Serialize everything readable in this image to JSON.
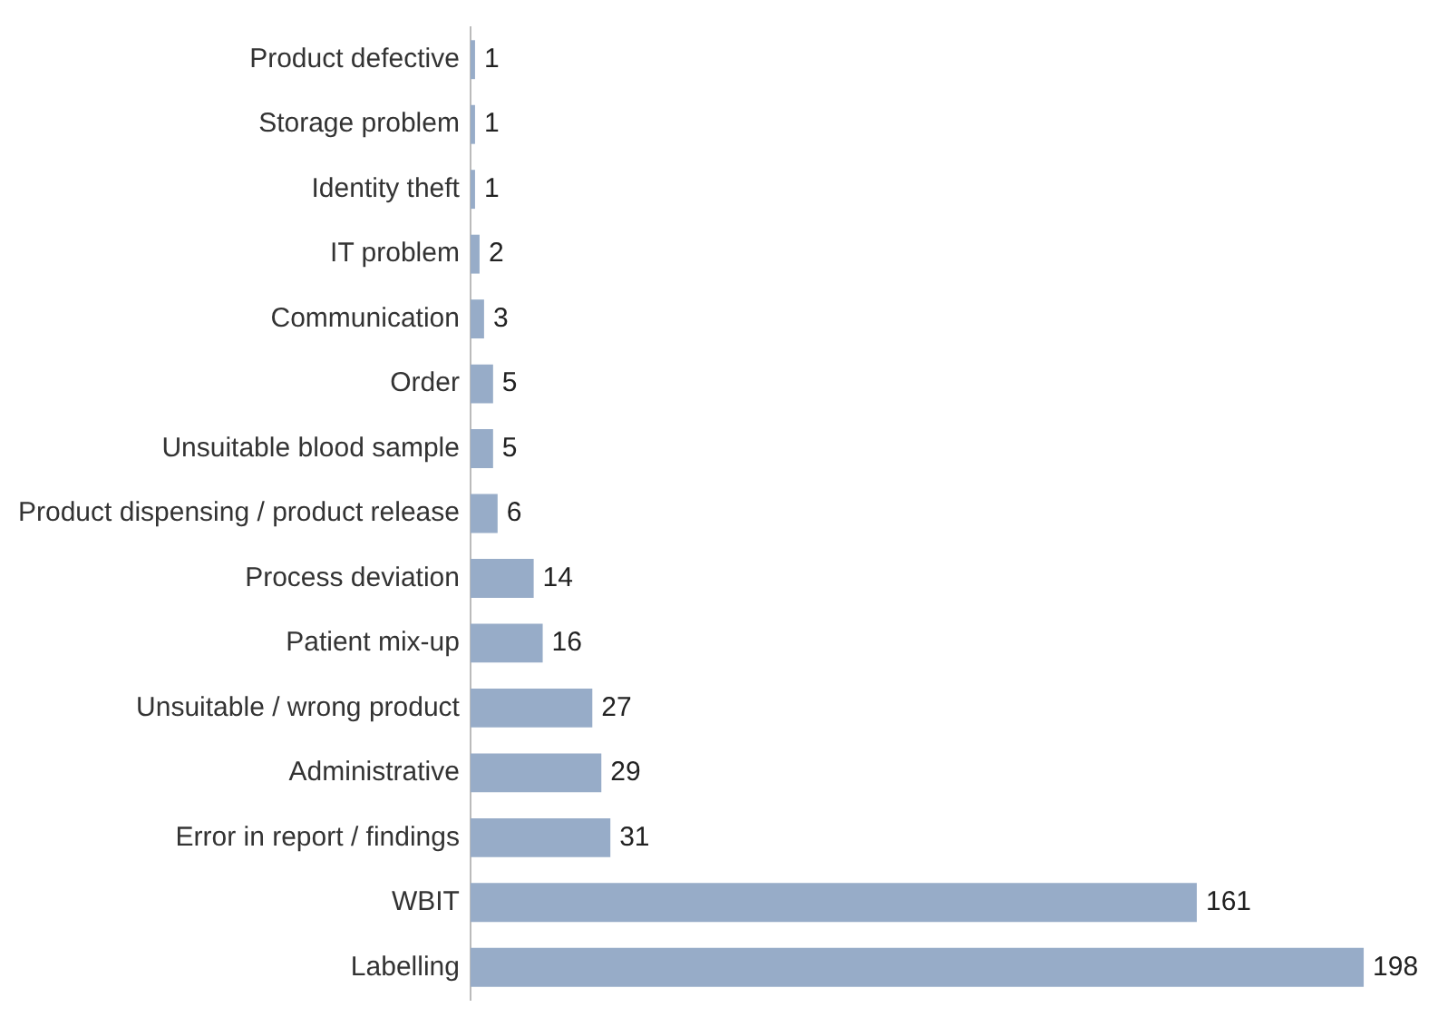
{
  "chart_data": {
    "type": "bar",
    "orientation": "horizontal",
    "categories": [
      "Product defective",
      "Storage problem",
      "Identity theft",
      "IT problem",
      "Communication",
      "Order",
      "Unsuitable blood sample",
      "Product dispensing / product release",
      "Process deviation",
      "Patient mix-up",
      "Unsuitable / wrong product",
      "Administrative",
      "Error in report / findings",
      "WBIT",
      "Labelling"
    ],
    "values": [
      1,
      1,
      1,
      2,
      3,
      5,
      5,
      6,
      14,
      16,
      27,
      29,
      31,
      161,
      198
    ],
    "color": "#97acc8",
    "data_labels": true
  }
}
